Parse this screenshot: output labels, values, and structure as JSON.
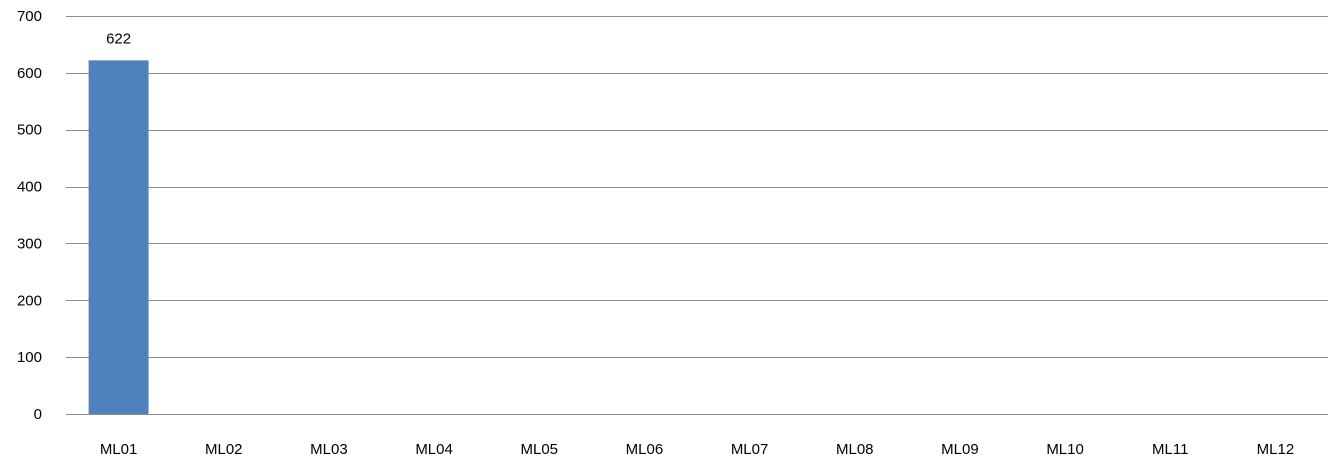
{
  "chart_data": {
    "type": "bar",
    "title": "",
    "xlabel": "",
    "ylabel": "",
    "categories": [
      "ML01",
      "ML02",
      "ML03",
      "ML04",
      "ML05",
      "ML06",
      "ML07",
      "ML08",
      "ML09",
      "ML10",
      "ML11",
      "ML12"
    ],
    "values": [
      622,
      0,
      0,
      0,
      0,
      0,
      0,
      0,
      0,
      0,
      0,
      0
    ],
    "data_labels": [
      "622",
      "",
      "",
      "",
      "",
      "",
      "",
      "",
      "",
      "",
      "",
      ""
    ],
    "ylim": [
      0,
      700
    ],
    "yticks": [
      0,
      100,
      200,
      300,
      400,
      500,
      600,
      700
    ],
    "ytick_labels": [
      "0",
      "100",
      "200",
      "300",
      "400",
      "500",
      "600",
      "700"
    ],
    "grid": true,
    "legend": "none",
    "bar_color": "#4f81bd",
    "grid_color": "#8c8c8c"
  }
}
